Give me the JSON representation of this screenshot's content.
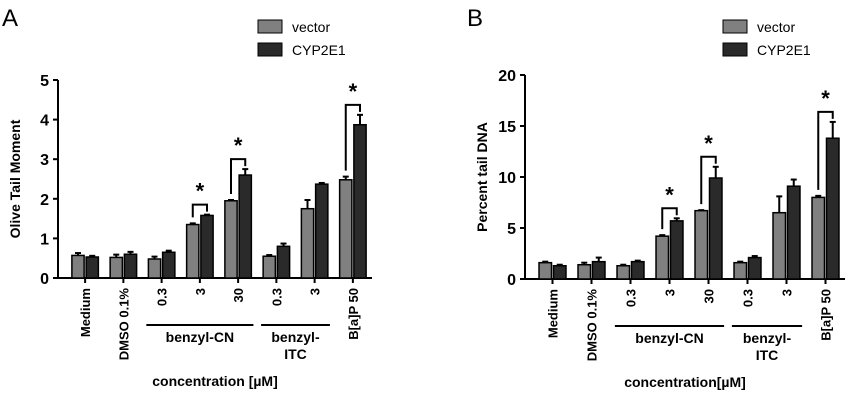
{
  "chart_data": [
    {
      "panel": "A",
      "type": "bar",
      "ylabel": "Olive Tail Moment",
      "xlabel": "concentration [µM]",
      "ylim": [
        0,
        5
      ],
      "yticks": [
        0,
        1,
        2,
        3,
        4,
        5
      ],
      "categories": [
        "Medium",
        "DMSO 0.1%",
        "0.3",
        "3",
        "30",
        "0.3",
        "3",
        "B[a]P 50"
      ],
      "groups": [
        {
          "label": "benzyl-CN",
          "span": [
            2,
            4
          ]
        },
        {
          "label": "benzyl-\nITC",
          "span": [
            5,
            6
          ]
        }
      ],
      "series": [
        {
          "name": "vector",
          "color": "#808080",
          "values": [
            0.57,
            0.52,
            0.48,
            1.35,
            1.95,
            0.55,
            1.75,
            2.48
          ],
          "errors": [
            0.06,
            0.07,
            0.06,
            0.03,
            0.02,
            0.03,
            0.22,
            0.08
          ]
        },
        {
          "name": "CYP2E1",
          "color": "#2a2a2a",
          "values": [
            0.53,
            0.6,
            0.65,
            1.58,
            2.6,
            0.8,
            2.37,
            3.87
          ],
          "errors": [
            0.03,
            0.06,
            0.04,
            0.02,
            0.15,
            0.07,
            0.03,
            0.25
          ]
        }
      ],
      "significance": [
        {
          "index": 3,
          "label": "*"
        },
        {
          "index": 4,
          "label": "*"
        },
        {
          "index": 7,
          "label": "*"
        }
      ],
      "legend": "top-right"
    },
    {
      "panel": "B",
      "type": "bar",
      "ylabel": "Percent tail DNA",
      "xlabel": "concentration[µM]",
      "ylim": [
        0,
        20
      ],
      "yticks": [
        0,
        5,
        10,
        15,
        20
      ],
      "categories": [
        "Medium",
        "DMSO 0.1%",
        "0.3",
        "3",
        "30",
        "0.3",
        "3",
        "B[a]P 50"
      ],
      "groups": [
        {
          "label": "benzyl-CN",
          "span": [
            2,
            4
          ]
        },
        {
          "label": "benzyl-\nITC",
          "span": [
            5,
            6
          ]
        }
      ],
      "series": [
        {
          "name": "vector",
          "color": "#808080",
          "values": [
            1.6,
            1.4,
            1.3,
            4.2,
            6.7,
            1.6,
            6.5,
            8.0
          ],
          "errors": [
            0.1,
            0.2,
            0.1,
            0.1,
            0.05,
            0.1,
            1.6,
            0.15
          ]
        },
        {
          "name": "CYP2E1",
          "color": "#2a2a2a",
          "values": [
            1.3,
            1.7,
            1.7,
            5.7,
            9.9,
            2.1,
            9.1,
            13.8
          ],
          "errors": [
            0.1,
            0.4,
            0.1,
            0.25,
            1.1,
            0.15,
            0.65,
            1.6
          ]
        }
      ],
      "significance": [
        {
          "index": 3,
          "label": "*"
        },
        {
          "index": 4,
          "label": "*"
        },
        {
          "index": 7,
          "label": "*"
        }
      ],
      "legend": "top-right"
    }
  ]
}
